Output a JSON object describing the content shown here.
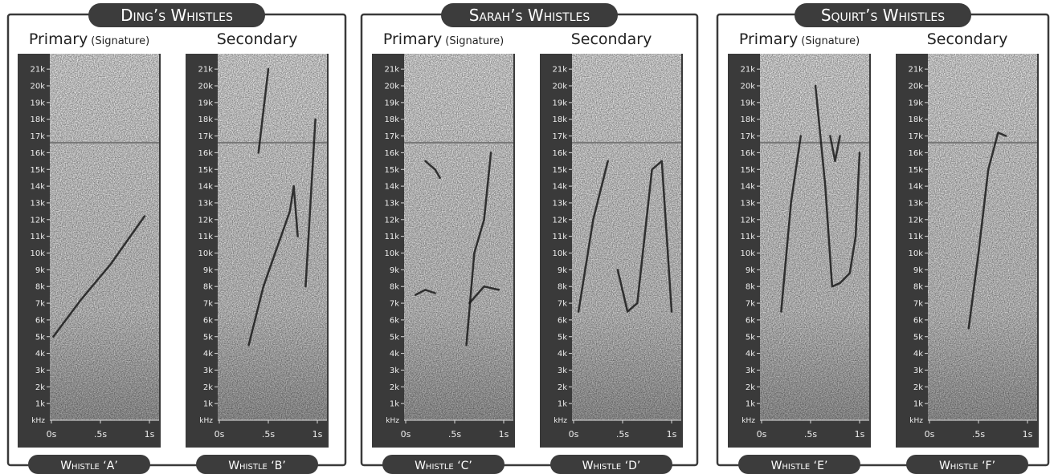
{
  "axis": {
    "y_unit": "kHz",
    "yticks": [
      {
        "value": 1,
        "label": "1k"
      },
      {
        "value": 2,
        "label": "2k"
      },
      {
        "value": 3,
        "label": "3k"
      },
      {
        "value": 4,
        "label": "4k"
      },
      {
        "value": 5,
        "label": "5k"
      },
      {
        "value": 6,
        "label": "6k"
      },
      {
        "value": 7,
        "label": "7k"
      },
      {
        "value": 8,
        "label": "8k"
      },
      {
        "value": 9,
        "label": "9k"
      },
      {
        "value": 10,
        "label": "10k"
      },
      {
        "value": 11,
        "label": "11k"
      },
      {
        "value": 12,
        "label": "12k"
      },
      {
        "value": 13,
        "label": "13k"
      },
      {
        "value": 14,
        "label": "14k"
      },
      {
        "value": 15,
        "label": "15k"
      },
      {
        "value": 16,
        "label": "16k"
      },
      {
        "value": 17,
        "label": "17k"
      },
      {
        "value": 18,
        "label": "18k"
      },
      {
        "value": 19,
        "label": "19k"
      },
      {
        "value": 20,
        "label": "20k"
      },
      {
        "value": 21,
        "label": "21k"
      }
    ],
    "xticks": [
      {
        "value": 0,
        "label": "0s"
      },
      {
        "value": 0.5,
        "label": ".5s"
      },
      {
        "value": 1,
        "label": "1s"
      }
    ]
  },
  "headers": {
    "primary": "Primary",
    "signature": "(Signature)",
    "secondary": "Secondary"
  },
  "groups": [
    {
      "title": "Ding’s Whistles",
      "whistles": [
        "Whistle ‘A’",
        "Whistle ‘B’"
      ]
    },
    {
      "title": "Sarah’s Whistles",
      "whistles": [
        "Whistle ‘C’",
        "Whistle ‘D’"
      ]
    },
    {
      "title": "Squirt’s Whistles",
      "whistles": [
        "Whistle ‘E’",
        "Whistle ‘F’"
      ]
    }
  ]
}
